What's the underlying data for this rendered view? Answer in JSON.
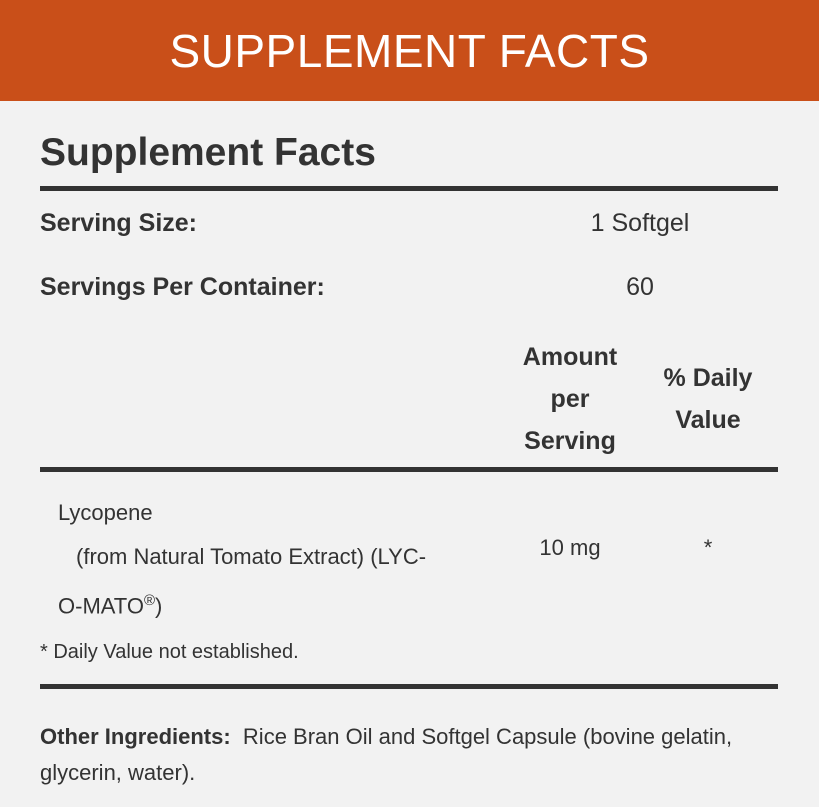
{
  "banner": "SUPPLEMENT FACTS",
  "title": "Supplement Facts",
  "serving_size": {
    "label": "Serving Size:",
    "value": "1 Softgel"
  },
  "servings_per_container": {
    "label": "Servings Per Container:",
    "value": "60"
  },
  "columns": {
    "amount": [
      "Amount",
      "per",
      "Serving"
    ],
    "dv": [
      "% Daily",
      "Value"
    ]
  },
  "rows": [
    {
      "name": "Lycopene",
      "detail1": "(from Natural Tomato Extract) (LYC-",
      "detail2": "O-MATO",
      "reg": "®",
      "detail2_end": ")",
      "amount": "10 mg",
      "dv": "*"
    }
  ],
  "footnote": "* Daily Value not established.",
  "other": {
    "label": "Other Ingredients:",
    "text": "Rice Bran Oil and Softgel Capsule (bovine gelatin,",
    "text2": "glycerin, water)."
  }
}
